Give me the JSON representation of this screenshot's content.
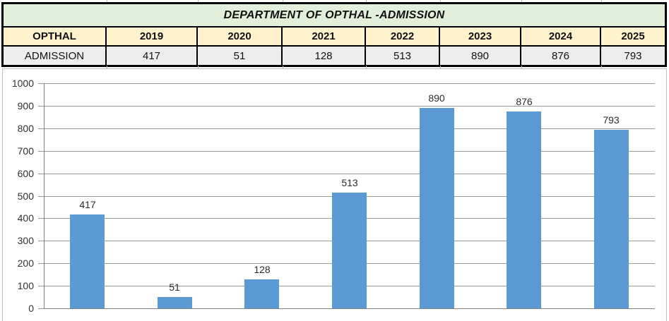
{
  "title_bar": {
    "title": "DEPARTMENT OF OPTHAL -ADMISSION"
  },
  "table": {
    "row_label_header": "OPTHAL",
    "row_label": "ADMISSION",
    "years": [
      "2019",
      "2020",
      "2021",
      "2022",
      "2023",
      "2024",
      "2025"
    ],
    "values": [
      "417",
      "51",
      "128",
      "513",
      "890",
      "876",
      "793"
    ]
  },
  "chart_data": {
    "type": "bar",
    "categories": [
      "2019",
      "2020",
      "2021",
      "2022",
      "2023",
      "2024",
      "2025"
    ],
    "values": [
      417,
      51,
      128,
      513,
      890,
      876,
      793
    ],
    "series_name": "ADMISSION",
    "title": "",
    "xlabel": "",
    "ylabel": "",
    "ylim": [
      0,
      1000
    ],
    "ytick_step": 100,
    "ytick_labels": [
      "0",
      "100",
      "200",
      "300",
      "400",
      "500",
      "600",
      "700",
      "800",
      "900",
      "1000"
    ],
    "data_labels": [
      "417",
      "51",
      "128",
      "513",
      "890",
      "876",
      "793"
    ],
    "grid": true,
    "legend": false,
    "x_axis_labels_visible": false
  },
  "colors": {
    "title_row_bg": "#E2EFDA",
    "header_row_bg": "#FFF2CC",
    "data_row_bg": "#EDEDED",
    "table_border": "#000000",
    "bar_fill": "#5B9BD5",
    "gridline": "#999999",
    "axis_line": "#808080",
    "chart_border": "#BFBFBF",
    "text": "#111111"
  }
}
